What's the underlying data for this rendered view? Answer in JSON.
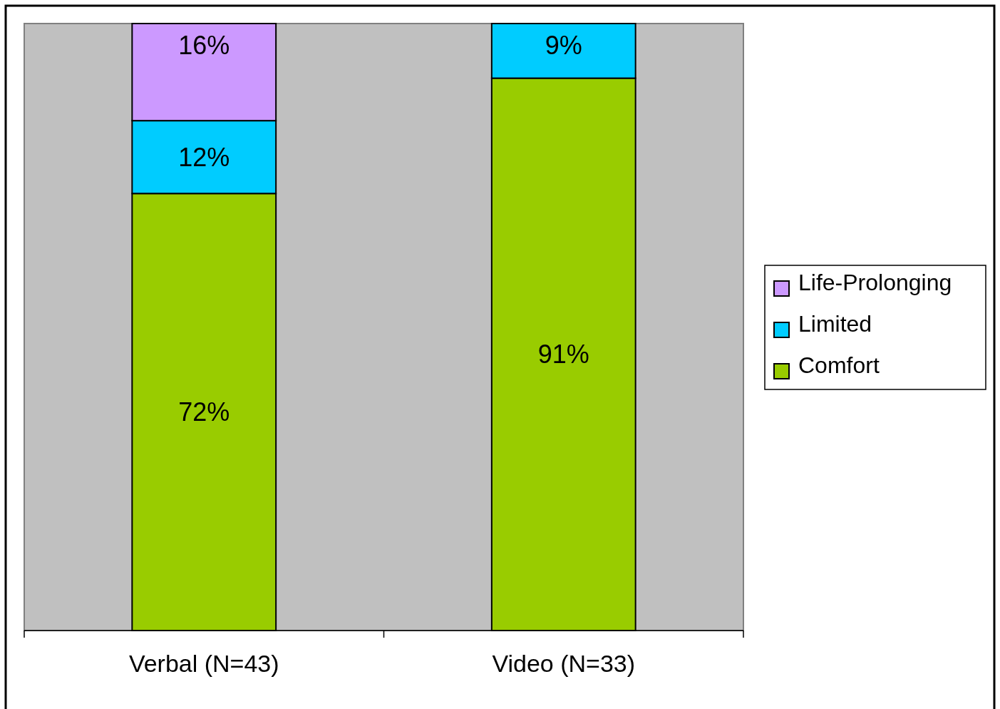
{
  "chart_data": {
    "type": "bar",
    "stacked": true,
    "categories": [
      "Verbal (N=43)",
      "Video (N=33)"
    ],
    "series": [
      {
        "name": "Comfort",
        "color": "#99cc00",
        "values": [
          72,
          91
        ],
        "value_labels": [
          "72%",
          "91%"
        ]
      },
      {
        "name": "Limited",
        "color": "#00ccff",
        "values": [
          12,
          9
        ],
        "value_labels": [
          "12%",
          "9%"
        ]
      },
      {
        "name": "Life-Prolonging",
        "color": "#cc99ff",
        "values": [
          16,
          null
        ],
        "value_labels": [
          "16%",
          null
        ]
      }
    ],
    "legend": "right"
  }
}
